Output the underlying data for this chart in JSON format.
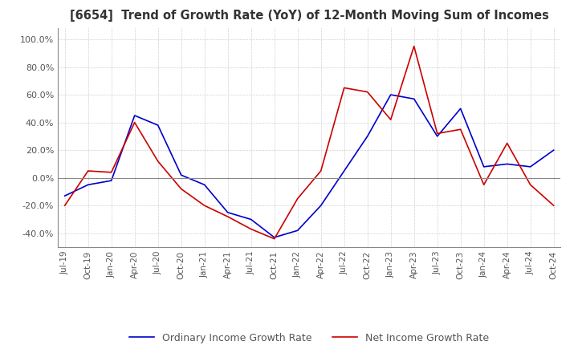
{
  "title": "[6654]  Trend of Growth Rate (YoY) of 12-Month Moving Sum of Incomes",
  "ylim": [
    -50,
    108
  ],
  "yticks": [
    -40,
    -20,
    0,
    20,
    40,
    60,
    80,
    100
  ],
  "background_color": "#ffffff",
  "grid_color": "#aaaaaa",
  "ordinary_color": "#0000cc",
  "net_color": "#cc0000",
  "legend_labels": [
    "Ordinary Income Growth Rate",
    "Net Income Growth Rate"
  ],
  "x_labels": [
    "Jul-19",
    "Oct-19",
    "Jan-20",
    "Apr-20",
    "Jul-20",
    "Oct-20",
    "Jan-21",
    "Apr-21",
    "Jul-21",
    "Oct-21",
    "Jan-22",
    "Apr-22",
    "Jul-22",
    "Oct-22",
    "Jan-23",
    "Apr-23",
    "Jul-23",
    "Oct-23",
    "Jan-24",
    "Apr-24",
    "Jul-24",
    "Oct-24"
  ],
  "ordinary_income": [
    -13,
    -5,
    -2,
    45,
    38,
    2,
    -5,
    -25,
    -30,
    -43,
    -38,
    -20,
    5,
    30,
    60,
    57,
    30,
    50,
    8,
    10,
    8,
    20
  ],
  "net_income": [
    -20,
    5,
    4,
    40,
    12,
    -8,
    -20,
    -28,
    -37,
    -44,
    -15,
    5,
    65,
    62,
    42,
    95,
    32,
    35,
    -5,
    25,
    -5,
    -20
  ]
}
